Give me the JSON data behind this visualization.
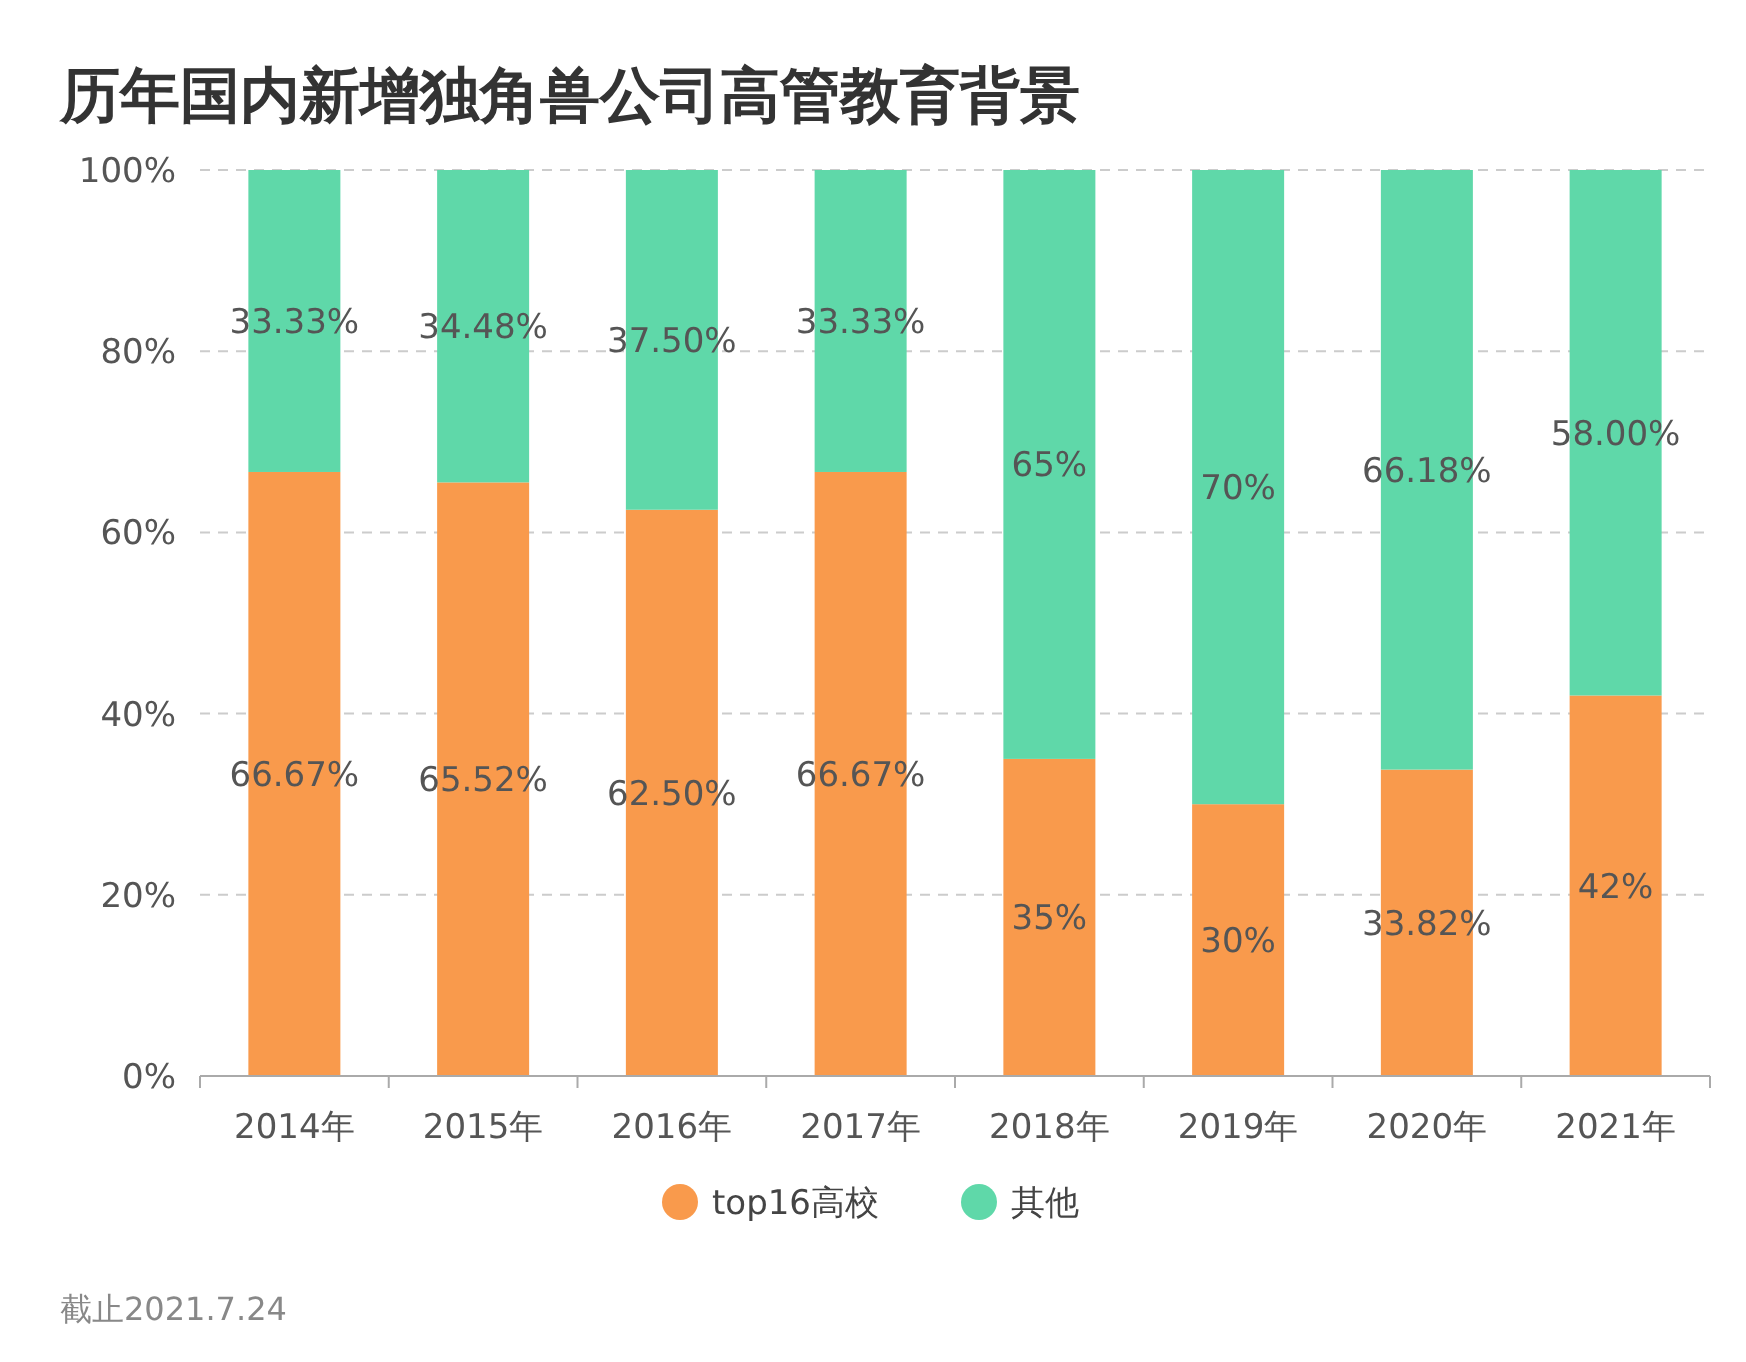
{
  "chart_data": {
    "type": "bar",
    "title": "历年国内新增独角兽公司高管教育背景",
    "categories": [
      "2014年",
      "2015年",
      "2016年",
      "2017年",
      "2018年",
      "2019年",
      "2020年",
      "2021年"
    ],
    "series": [
      {
        "name": "top16高校",
        "color": "#f99a4c",
        "values": [
          66.67,
          65.52,
          62.5,
          66.67,
          35,
          30,
          33.82,
          42
        ],
        "value_labels": [
          "66.67%",
          "65.52%",
          "62.50%",
          "66.67%",
          "35%",
          "30%",
          "33.82%",
          "42%"
        ]
      },
      {
        "name": "其他",
        "color": "#5fd8a9",
        "values": [
          33.33,
          34.48,
          37.5,
          33.33,
          65,
          70,
          66.18,
          58
        ],
        "value_labels": [
          "33.33%",
          "34.48%",
          "37.50%",
          "33.33%",
          "65%",
          "70%",
          "66.18%",
          "58.00%"
        ]
      }
    ],
    "stacked": true,
    "ylim": [
      0,
      100
    ],
    "yticks": [
      {
        "value": 0,
        "label": "0%"
      },
      {
        "value": 20,
        "label": "20%"
      },
      {
        "value": 40,
        "label": "40%"
      },
      {
        "value": 60,
        "label": "60%"
      },
      {
        "value": 80,
        "label": "80%"
      },
      {
        "value": 100,
        "label": "100%"
      }
    ],
    "grid": "y",
    "legend": "bottom",
    "annotations": [
      "截止2021.7.24"
    ]
  }
}
